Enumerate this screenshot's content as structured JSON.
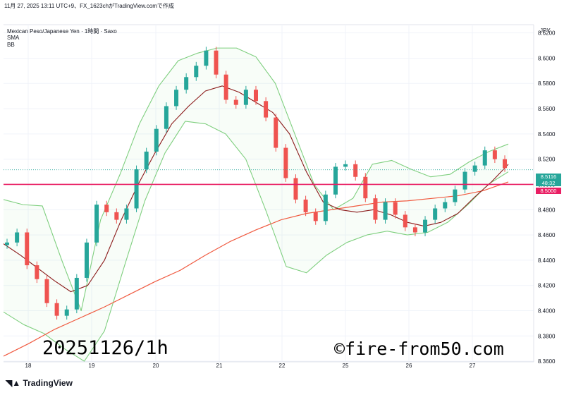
{
  "header": {
    "snapshot": "11月 27, 2025 13:11 UTC+9、FX_1623chがTradingView.comで作成",
    "symbol": "Mexican Peso/Japanese Yen · 1時間 · Saxo",
    "indicator1": "SMA",
    "indicator2": "BB"
  },
  "axis": {
    "currency": "JPY"
  },
  "price_tags": {
    "last_price": "8.5116",
    "countdown": "48:32",
    "level": "8.5000",
    "last_color": "#26a69a",
    "level_color": "#e91e63"
  },
  "watermark": {
    "left": "20251126/1h",
    "right": "©fire-from50.com"
  },
  "branding": {
    "logo_text": "TradingView"
  },
  "colors": {
    "up": "#26a69a",
    "down": "#ef5350",
    "bb": "#7fcf7f",
    "sma_fast": "#8b1a1a",
    "sma_slow": "#f05a40",
    "hline": "#e91e63"
  },
  "chart_data": {
    "type": "candlestick",
    "title": "Mexican Peso/Japanese Yen · 1時間 · Saxo",
    "x_ticks": [
      "18",
      "19",
      "20",
      "21",
      "22",
      "25",
      "26",
      "27"
    ],
    "y_ticks": [
      "8.6200",
      "8.6000",
      "8.5800",
      "8.5600",
      "8.5400",
      "8.5200",
      "8.5000",
      "8.4800",
      "8.4600",
      "8.4400",
      "8.4200",
      "8.4000",
      "8.3800",
      "8.3600"
    ],
    "ylim": [
      8.3595,
      8.6265
    ],
    "horizontal_line": 8.5,
    "last_price": 8.5116,
    "series": [
      {
        "name": "close",
        "kind": "candles",
        "values": [
          8.454,
          8.462,
          8.436,
          8.425,
          8.406,
          8.396,
          8.401,
          8.426,
          8.454,
          8.484,
          8.478,
          8.472,
          8.481,
          8.512,
          8.526,
          8.544,
          8.562,
          8.575,
          8.585,
          8.594,
          8.606,
          8.587,
          8.567,
          8.563,
          8.575,
          8.566,
          8.553,
          8.529,
          8.505,
          8.488,
          8.478,
          8.471,
          8.492,
          8.514,
          8.516,
          8.506,
          8.489,
          8.472,
          8.486,
          8.476,
          8.466,
          8.462,
          8.472,
          8.481,
          8.486,
          8.496,
          8.51,
          8.515,
          8.527,
          8.52,
          8.513
        ]
      },
      {
        "name": "SMA",
        "kind": "line",
        "values": [
          8.453,
          8.444,
          8.434,
          8.424,
          8.415,
          8.42,
          8.44,
          8.472,
          8.5,
          8.525,
          8.548,
          8.562,
          8.574,
          8.578,
          8.573,
          8.565,
          8.557,
          8.54,
          8.51,
          8.486,
          8.48,
          8.478,
          8.48,
          8.476,
          8.47,
          8.467,
          8.47,
          8.477,
          8.49,
          8.502,
          8.516
        ]
      },
      {
        "name": "SMA",
        "kind": "line",
        "values": [
          8.364,
          8.374,
          8.385,
          8.394,
          8.403,
          8.413,
          8.423,
          8.432,
          8.444,
          8.455,
          8.464,
          8.472,
          8.477,
          8.48,
          8.483,
          8.486,
          8.487,
          8.489,
          8.491,
          8.495,
          8.502
        ]
      },
      {
        "name": "BB",
        "kind": "line",
        "values": [
          8.488,
          8.484,
          8.483,
          8.44,
          8.4,
          8.472,
          8.508,
          8.548,
          8.578,
          8.598,
          8.604,
          8.608,
          8.608,
          8.601,
          8.58,
          8.54,
          8.5,
          8.48,
          8.489,
          8.516,
          8.519,
          8.512,
          8.506,
          8.508,
          8.518,
          8.526,
          8.532
        ]
      },
      {
        "name": "BB",
        "kind": "line",
        "values": [
          8.399,
          8.389,
          8.382,
          8.37,
          8.36,
          8.384,
          8.436,
          8.487,
          8.525,
          8.55,
          8.548,
          8.54,
          8.52,
          8.479,
          8.435,
          8.43,
          8.444,
          8.454,
          8.46,
          8.463,
          8.46,
          8.462,
          8.47,
          8.484,
          8.5,
          8.51
        ]
      }
    ]
  }
}
